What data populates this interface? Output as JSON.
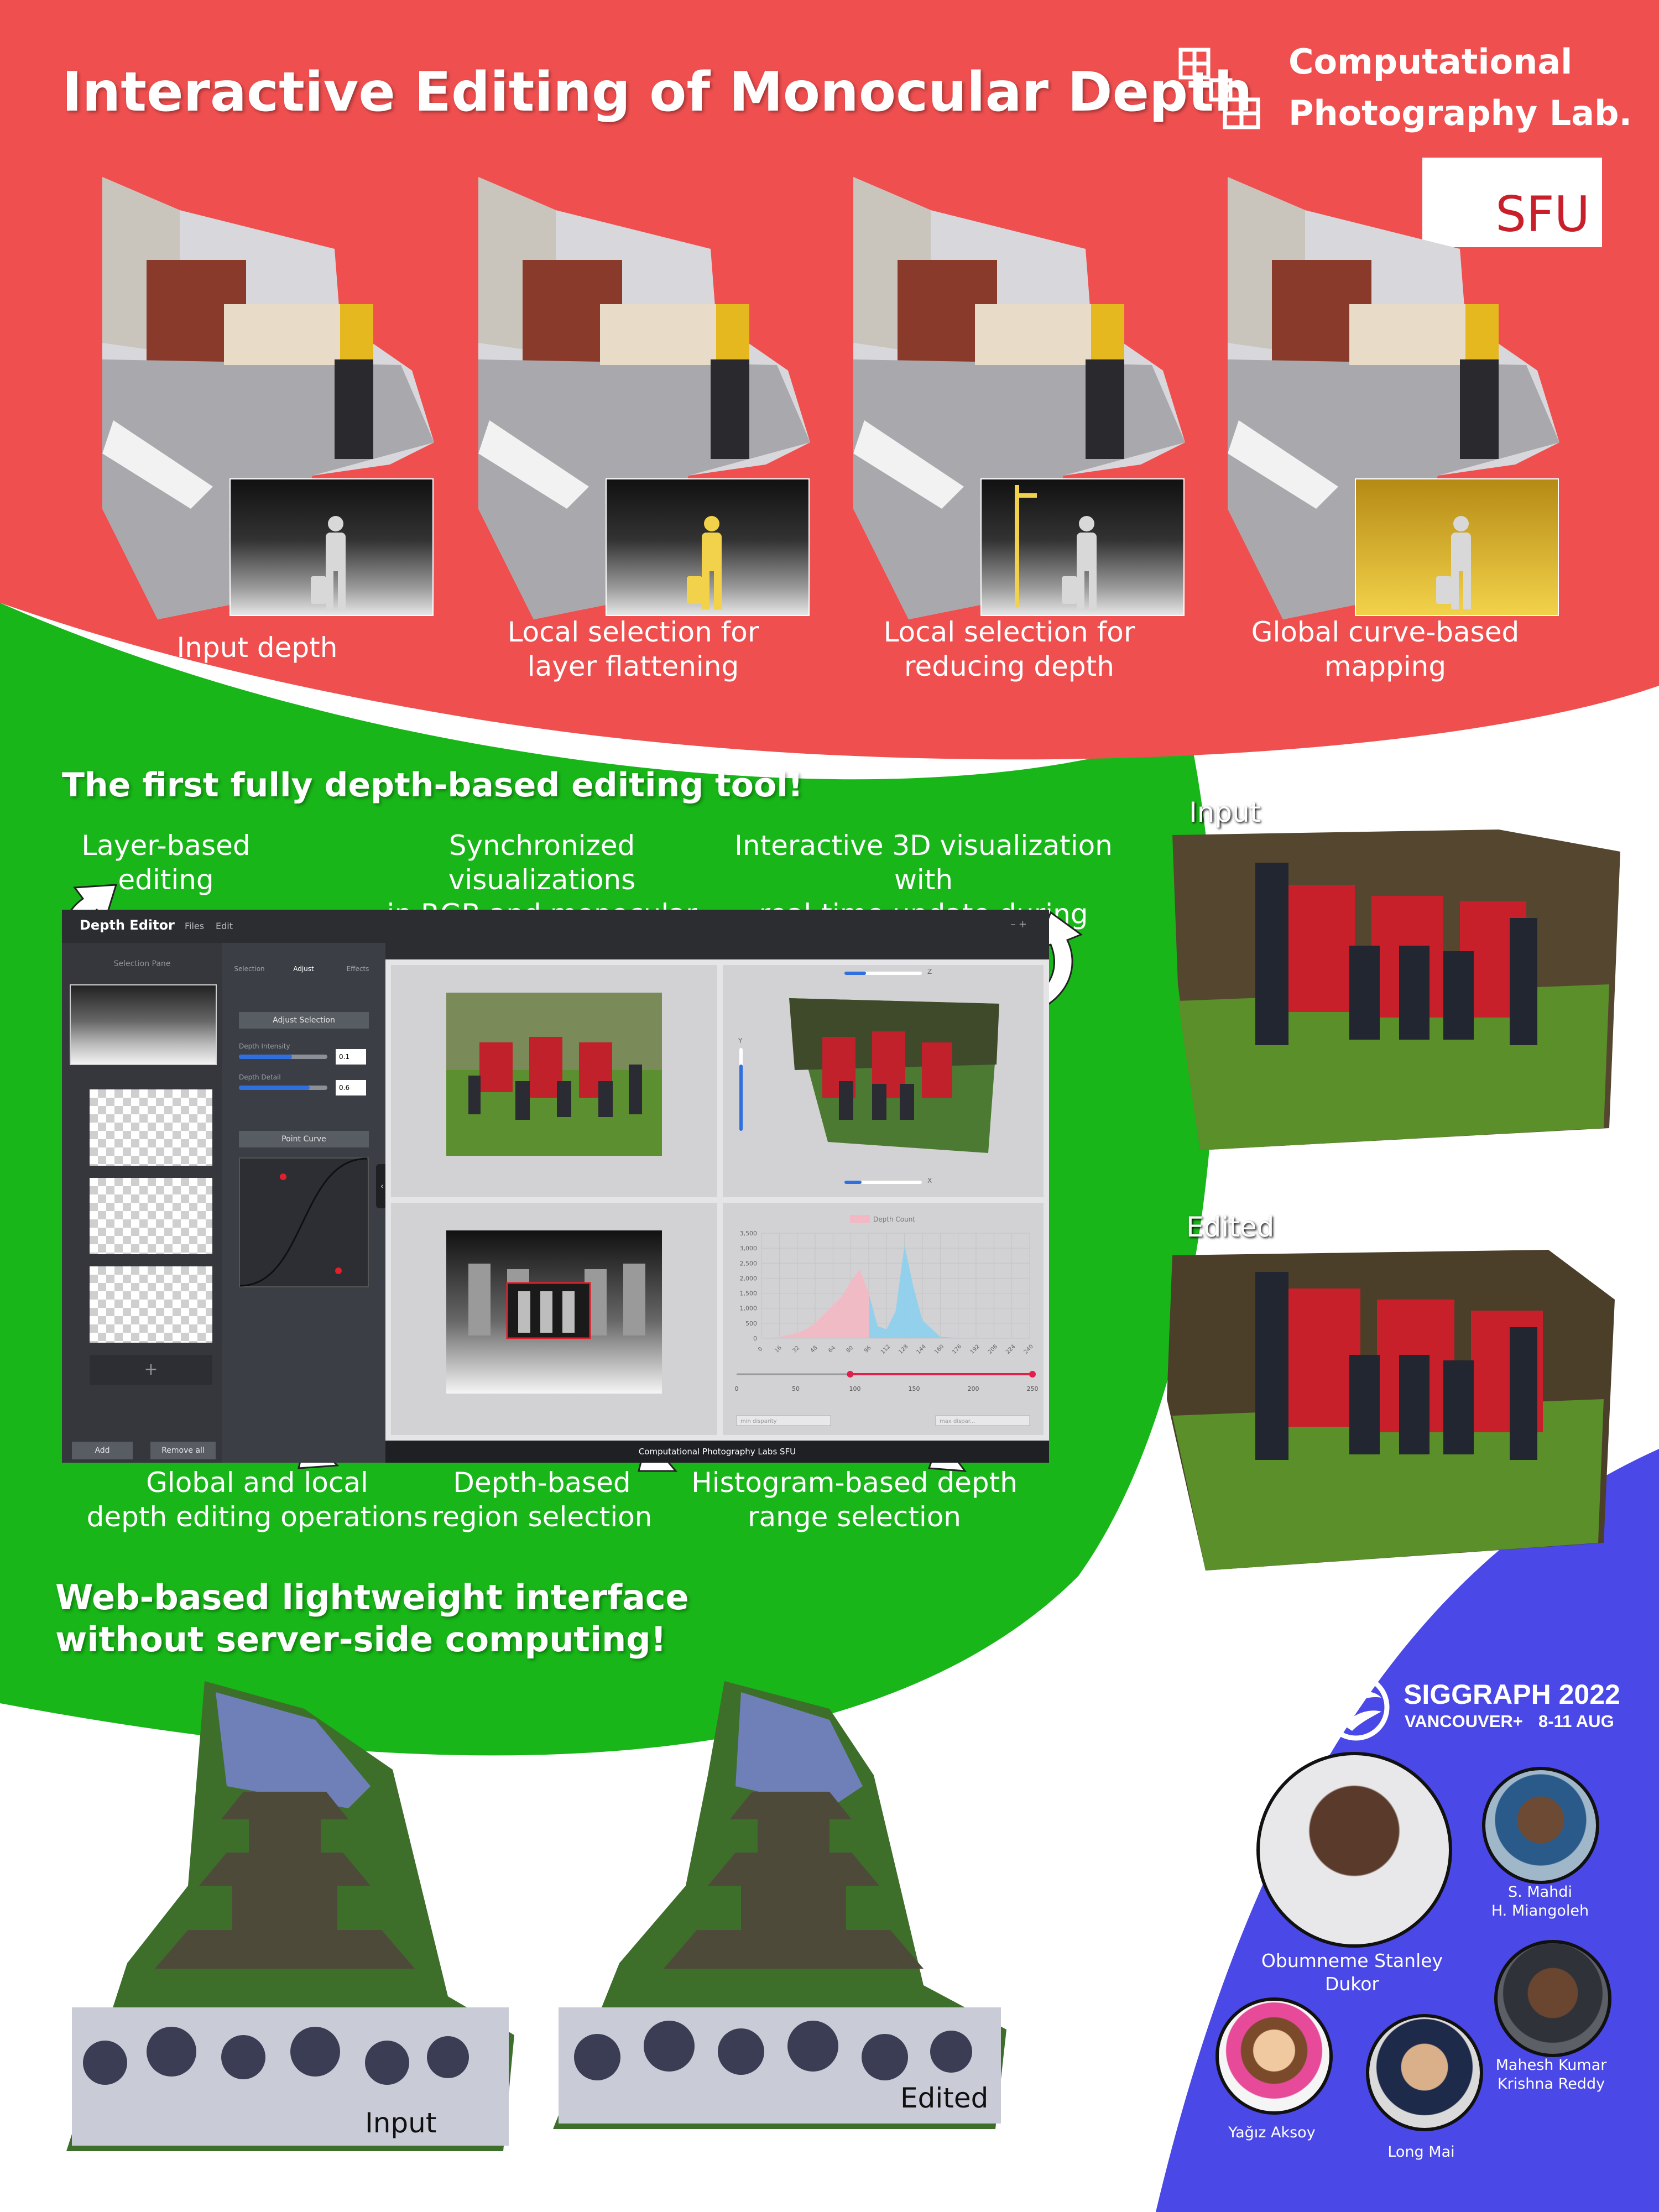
{
  "poster": {
    "title": "Interactive Editing of Monocular Depth",
    "lab_name_line1": "Computational",
    "lab_name_line2": "Photography Lab.",
    "university_logo": "SFU"
  },
  "colors": {
    "red_band": "#ef4f4f",
    "green_band": "#18b618",
    "blue_band": "#4a48e6",
    "depth_highlight": "#f2d24a",
    "slider_blue": "#2f6fe0",
    "curve_point": "#e0202a"
  },
  "top_row": {
    "captions": [
      {
        "line1": "Input depth",
        "line2": ""
      },
      {
        "line1": "Local selection for",
        "line2": "layer flattening"
      },
      {
        "line1": "Local selection for",
        "line2": "reducing depth"
      },
      {
        "line1": "Global curve-based",
        "line2": "mapping"
      }
    ]
  },
  "middle": {
    "heading": "The first fully depth-based editing tool!",
    "labels": {
      "layer": {
        "line1": "Layer-based",
        "line2": "editing"
      },
      "sync": {
        "line1": "Synchronized visualizations",
        "line2": "in RGB and monocular depth"
      },
      "viz3d": {
        "line1": "Interactive 3D visualization with",
        "line2": "real-time update during editing"
      },
      "global_local": {
        "line1": "Global and local",
        "line2": "depth editing operations"
      },
      "region": {
        "line1": "Depth-based",
        "line2": "region selection"
      },
      "histogram": {
        "line1": "Histogram-based depth",
        "line2": "range selection"
      }
    },
    "side_labels": {
      "input": "Input",
      "edited": "Edited"
    }
  },
  "app": {
    "title": "Depth Editor",
    "menu": [
      "Files",
      "Edit"
    ],
    "window_controls": "– +",
    "selection_pane": "Selection Pane",
    "tabs": [
      "Selection",
      "Adjust",
      "Effects"
    ],
    "adjust_selection": "Adjust Selection",
    "depth_intensity_label": "Depth Intensity",
    "depth_intensity_value": "0.1",
    "depth_detail_label": "Depth Detail",
    "depth_detail_value": "0.6",
    "point_curve": "Point Curve",
    "add_layer": "+",
    "add": "Add",
    "remove_all": "Remove all",
    "collapse": "‹",
    "statusbar": "Computational Photography Labs SFU",
    "slider_z": "Z",
    "slider_y": "Y",
    "slider_x": "X",
    "min_disparity": "min disparity",
    "max_disparity": "max dispar..."
  },
  "chart_data": {
    "type": "area",
    "title": "",
    "legend": [
      "Depth Count"
    ],
    "legend_position": "top-center",
    "xlabel": "",
    "ylabel": "",
    "ylim": [
      0,
      3500
    ],
    "y_ticks": [
      "0",
      "500",
      "1,000",
      "1,500",
      "2,000",
      "2,500",
      "3,000",
      "3,500"
    ],
    "x_ticks": [
      "0",
      "16",
      "32",
      "48",
      "64",
      "80",
      "96",
      "112",
      "128",
      "144",
      "160",
      "176",
      "192",
      "208",
      "224",
      "240"
    ],
    "slider_ticks": [
      "0",
      "50",
      "100",
      "150",
      "200",
      "250"
    ],
    "grid": true,
    "series": [
      {
        "name": "Depth Count",
        "x": [
          0,
          16,
          32,
          40,
          48,
          56,
          64,
          72,
          80,
          88,
          96,
          104,
          112,
          120,
          128,
          136,
          144,
          160,
          176,
          192,
          208,
          224,
          240
        ],
        "values": [
          0,
          40,
          180,
          300,
          500,
          800,
          1100,
          1400,
          1900,
          2300,
          1500,
          400,
          300,
          900,
          3100,
          1700,
          600,
          50,
          10,
          0,
          0,
          0,
          0
        ]
      }
    ],
    "selected_range": [
      96,
      250
    ]
  },
  "bottom": {
    "heading_line1": "Web-based lightweight interface",
    "heading_line2": "without server-side computing!",
    "labels": {
      "input": "Input",
      "edited": "Edited"
    }
  },
  "conference": {
    "name": "SIGGRAPH 2022",
    "location": "VANCOUVER+",
    "dates": "8-11 AUG"
  },
  "authors": [
    {
      "name_line1": "Obumneme Stanley",
      "name_line2": "Dukor"
    },
    {
      "name_line1": "S. Mahdi",
      "name_line2": "H. Miangoleh"
    },
    {
      "name_line1": "Mahesh Kumar",
      "name_line2": "Krishna Reddy"
    },
    {
      "name_line1": "Long Mai",
      "name_line2": ""
    },
    {
      "name_line1": "Yağız Aksoy",
      "name_line2": ""
    }
  ]
}
